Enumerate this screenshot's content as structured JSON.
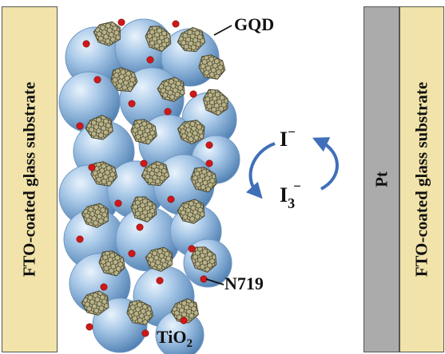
{
  "panels": {
    "fto_left": "FTO-coated glass substrate",
    "pt": "Pt",
    "fto_right": "FTO-coated glass substrate"
  },
  "labels": {
    "gqd": "GQD",
    "n719": "N719",
    "tio2_main": "TiO",
    "tio2_sub": "2",
    "iodide_main": "I",
    "iodide_sup": "−",
    "triiodide_main": "I",
    "triiodide_sub": "3",
    "triiodide_sup": "−"
  },
  "colors": {
    "fto": "#f1e3a9",
    "pt": "#ababab",
    "tio2_sphere": "#8fb6dc",
    "dye_dot": "#d01818",
    "gqd_sheet": "#6f6a43",
    "cycle_arrow": "#3f6fb8"
  }
}
